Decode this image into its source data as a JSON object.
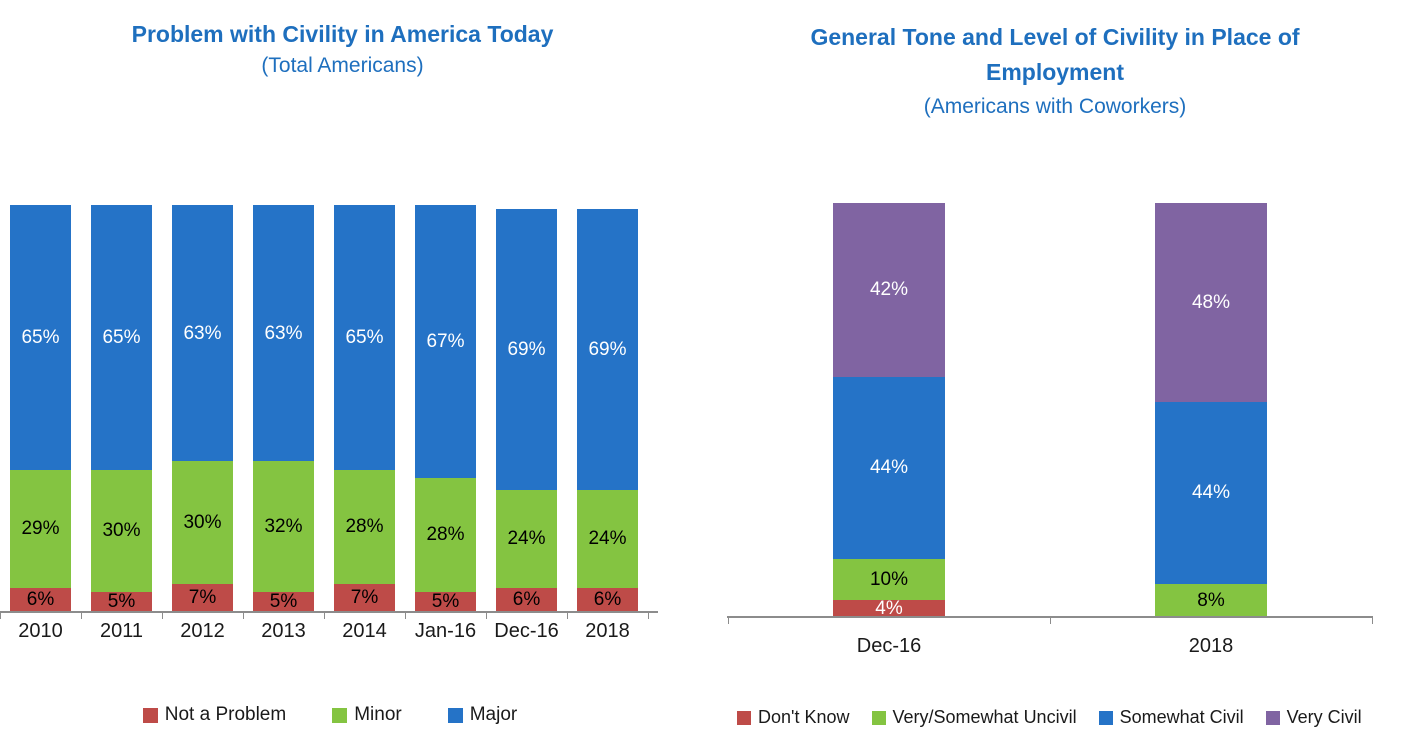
{
  "page": {
    "background": "#FFFFFF"
  },
  "chart_data": [
    {
      "type": "bar",
      "stacked": true,
      "title": "Problem with Civility in America Today",
      "subtitle": "(Total Americans)",
      "title_color": "#1E6FBE",
      "axis_color": "#8C8C8C",
      "categories": [
        "2010",
        "2011",
        "2012",
        "2013",
        "2014",
        "Jan-16",
        "Dec-16",
        "2018"
      ],
      "series": [
        {
          "name": "Not a Problem",
          "color": "#BE4B48",
          "label_color": "#000000",
          "values": [
            6,
            5,
            7,
            5,
            7,
            5,
            6,
            6
          ]
        },
        {
          "name": "Minor",
          "color": "#84C441",
          "label_color": "#000000",
          "values": [
            29,
            30,
            30,
            32,
            28,
            28,
            24,
            24
          ]
        },
        {
          "name": "Major",
          "color": "#2573C7",
          "label_color": "#FFFFFF",
          "values": [
            65,
            65,
            63,
            63,
            65,
            67,
            69,
            69
          ]
        }
      ],
      "value_suffix": "%",
      "ylim": [
        0,
        100
      ],
      "grid": false,
      "legend_position": "bottom"
    },
    {
      "type": "bar",
      "stacked": true,
      "title": "General Tone and Level of Civility in Place of Employment",
      "subtitle": "(Americans with Coworkers)",
      "title_color": "#1E6FBE",
      "axis_color": "#8C8C8C",
      "categories": [
        "Dec-16",
        "2018"
      ],
      "series": [
        {
          "name": "Don't Know",
          "color": "#BE4B48",
          "label_color": "#FFFFFF",
          "values": [
            4,
            0
          ]
        },
        {
          "name": "Very/Somewhat Uncivil",
          "color": "#84C441",
          "label_color": "#000000",
          "values": [
            10,
            8
          ]
        },
        {
          "name": "Somewhat Civil",
          "color": "#2573C7",
          "label_color": "#FFFFFF",
          "values": [
            44,
            44
          ]
        },
        {
          "name": "Very Civil",
          "color": "#8064A2",
          "label_color": "#FFFFFF",
          "values": [
            42,
            48
          ]
        }
      ],
      "value_suffix": "%",
      "ylim": [
        0,
        100
      ],
      "grid": false,
      "legend_position": "bottom"
    }
  ]
}
